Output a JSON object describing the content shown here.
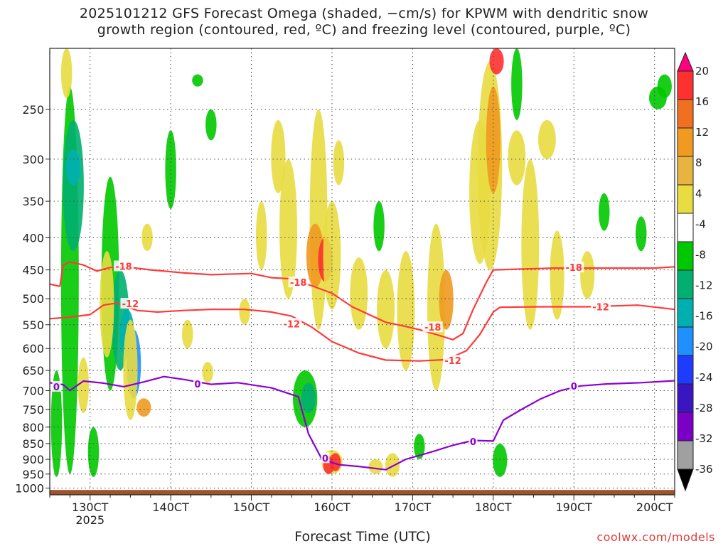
{
  "title_line1": "2025101212 GFS Forecast Omega (shaded, −cm/s) for KPWM with dendritic snow",
  "title_line2": "growth region (contoured, red, ºC) and freezing level (contoured, purple, ºC)",
  "xlabel": "Forecast Time (UTC)",
  "credit": "coolwx.com/models",
  "chart_data": {
    "type": "heatmap",
    "title": "2025101212 GFS Forecast Omega (shaded, −cm/s) for KPWM with dendritic snow growth region (contoured, red, ºC) and freezing level (contoured, purple, ºC)",
    "xlabel": "Forecast Time (UTC)",
    "ylabel": "",
    "x_ticks": [
      "130CT",
      "140CT",
      "150CT",
      "160CT",
      "170CT",
      "180CT",
      "190CT",
      "200CT"
    ],
    "x_tick_hours": [
      12,
      36,
      60,
      84,
      108,
      132,
      156,
      180
    ],
    "x_sublabel": "2025",
    "xlim_hours": [
      0,
      186
    ],
    "y_ticks": [
      250,
      300,
      350,
      400,
      450,
      500,
      550,
      600,
      650,
      700,
      750,
      800,
      850,
      900,
      950,
      1000
    ],
    "ylim_hpa": [
      1025,
      200
    ],
    "y_scale": "log",
    "grid": true,
    "colorbar": {
      "label_values": [
        20,
        16,
        12,
        8,
        4,
        -4,
        -8,
        -12,
        -16,
        -20,
        -24,
        -28,
        -32,
        -36
      ],
      "colors": [
        "#ff0080",
        "#ff3030",
        "#f07020",
        "#f09a20",
        "#e8b440",
        "#e8dc40",
        "#ffffff",
        "#00c800",
        "#00b070",
        "#00b0b0",
        "#1e90ff",
        "#1e3cff",
        "#3a16c0",
        "#7a00c8",
        "#a0a0a0",
        "#000000"
      ]
    },
    "contours": [
      {
        "name": "-18",
        "color": "#ff3a3a",
        "points": [
          [
            0,
            474
          ],
          [
            3,
            478
          ],
          [
            4,
            442
          ],
          [
            6,
            437
          ],
          [
            10,
            442
          ],
          [
            14,
            452
          ],
          [
            18,
            446
          ],
          [
            24,
            446
          ],
          [
            30,
            450
          ],
          [
            40,
            455
          ],
          [
            48,
            458
          ],
          [
            60,
            456
          ],
          [
            66,
            463
          ],
          [
            72,
            465
          ],
          [
            78,
            477
          ],
          [
            84,
            490
          ],
          [
            90,
            515
          ],
          [
            100,
            545
          ],
          [
            105,
            552
          ],
          [
            110,
            560
          ],
          [
            115,
            570
          ],
          [
            120,
            581
          ],
          [
            123,
            568
          ],
          [
            126,
            520
          ],
          [
            130,
            470
          ],
          [
            132,
            450
          ],
          [
            150,
            447
          ],
          [
            160,
            447
          ],
          [
            170,
            447
          ],
          [
            180,
            447
          ],
          [
            186,
            445
          ]
        ],
        "labels": [
          [
            22,
            444,
            "-18"
          ],
          [
            74,
            471,
            "-18"
          ],
          [
            114,
            555,
            "-18"
          ],
          [
            156,
            446,
            "-18"
          ]
        ]
      },
      {
        "name": "-12",
        "color": "#ff3a3a",
        "points": [
          [
            0,
            538
          ],
          [
            6,
            535
          ],
          [
            12,
            530
          ],
          [
            16,
            512
          ],
          [
            20,
            508
          ],
          [
            26,
            522
          ],
          [
            32,
            525
          ],
          [
            40,
            522
          ],
          [
            48,
            520
          ],
          [
            58,
            520
          ],
          [
            66,
            525
          ],
          [
            72,
            533
          ],
          [
            78,
            555
          ],
          [
            84,
            585
          ],
          [
            92,
            610
          ],
          [
            100,
            626
          ],
          [
            110,
            628
          ],
          [
            118,
            625
          ],
          [
            124,
            605
          ],
          [
            128,
            570
          ],
          [
            132,
            525
          ],
          [
            134,
            516
          ],
          [
            146,
            515
          ],
          [
            160,
            515
          ],
          [
            175,
            512
          ],
          [
            186,
            520
          ]
        ],
        "labels": [
          [
            24,
            509,
            "-12"
          ],
          [
            72,
            548,
            "-12"
          ],
          [
            120,
            627,
            "-12"
          ],
          [
            164,
            515,
            "-12"
          ]
        ]
      },
      {
        "name": "0",
        "color": "#8c00d4",
        "points": [
          [
            0,
            680
          ],
          [
            4,
            685
          ],
          [
            6,
            700
          ],
          [
            10,
            676
          ],
          [
            16,
            681
          ],
          [
            22,
            690
          ],
          [
            28,
            678
          ],
          [
            34,
            665
          ],
          [
            40,
            672
          ],
          [
            48,
            684
          ],
          [
            56,
            680
          ],
          [
            66,
            693
          ],
          [
            74,
            716
          ],
          [
            77,
            820
          ],
          [
            81,
            900
          ],
          [
            86,
            918
          ],
          [
            92,
            924
          ],
          [
            100,
            935
          ],
          [
            106,
            900
          ],
          [
            114,
            875
          ],
          [
            120,
            855
          ],
          [
            126,
            840
          ],
          [
            132,
            842
          ],
          [
            135,
            780
          ],
          [
            140,
            752
          ],
          [
            146,
            722
          ],
          [
            152,
            700
          ],
          [
            158,
            688
          ],
          [
            166,
            683
          ],
          [
            176,
            680
          ],
          [
            186,
            675
          ]
        ],
        "labels": [
          [
            2,
            690,
            "0"
          ],
          [
            44,
            683,
            "0"
          ],
          [
            82,
            896,
            "0"
          ],
          [
            126,
            843,
            "0"
          ],
          [
            156,
            688,
            "0"
          ]
        ]
      }
    ]
  }
}
